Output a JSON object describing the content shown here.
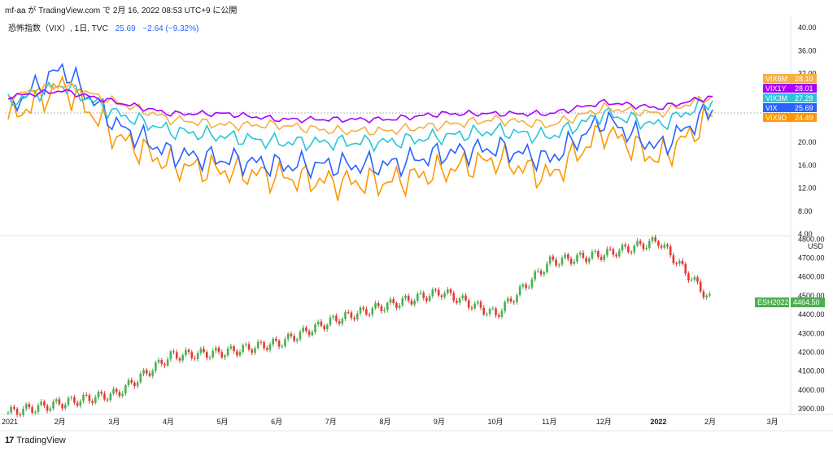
{
  "header": {
    "caption": "mf-aa が TradingView.com で 2月 16, 2022 08:53 UTC+9 に公開"
  },
  "legend": {
    "symbol": "恐怖指数（VIX）, 1日, TVC",
    "value": "25.69",
    "change": "−2.64 (−9.32%)"
  },
  "colors": {
    "vix": "#2962ff",
    "vix9d": "#ff9800",
    "vix3m": "#26c6da",
    "vix6m": "#f5b041",
    "vix1y": "#aa00ff",
    "es_up": "#4caf50",
    "es_down": "#e53935"
  },
  "top_axis_labels": [
    "40.00",
    "36.00",
    "32.00",
    "28.00",
    "24.00",
    "20.00",
    "16.00",
    "12.00",
    "8.00",
    "4.00"
  ],
  "bottom_axis_labels": [
    "4800.00",
    "4700.00",
    "4600.00",
    "4500.00",
    "4400.00",
    "4300.00",
    "4200.00",
    "4100.00",
    "4000.00",
    "3900.00"
  ],
  "bottom_axis_unit": "USD",
  "x_labels": [
    "2021",
    "2月",
    "3月",
    "4月",
    "5月",
    "6月",
    "7月",
    "8月",
    "9月",
    "10月",
    "11月",
    "12月",
    "2022",
    "2月",
    "3月"
  ],
  "badges": [
    {
      "name": "VIX6M",
      "value": "28.10",
      "color": "#f5b041"
    },
    {
      "name": "VIX1Y",
      "value": "28.01",
      "color": "#aa00ff"
    },
    {
      "name": "VIX3M",
      "value": "27.28",
      "color": "#26c6da"
    },
    {
      "name": "VIX",
      "value": "25.69",
      "color": "#2962ff"
    },
    {
      "name": "VIX9D",
      "value": "24.49",
      "color": "#ff9800"
    }
  ],
  "es_badge": {
    "name": "ESH2022",
    "value": "4464.50",
    "color": "#4caf50"
  },
  "footer": {
    "logo": "17",
    "brand": "TradingView"
  },
  "chart_data": [
    {
      "type": "line",
      "title": "恐怖指数（VIX）, 1日, TVC",
      "ylim": [
        4,
        42
      ],
      "x": [
        "2021-01",
        "2021-02",
        "2021-03",
        "2021-04",
        "2021-05",
        "2021-06",
        "2021-07",
        "2021-08",
        "2021-09",
        "2021-10",
        "2021-11",
        "2021-12",
        "2022-01",
        "2022-02"
      ],
      "series": [
        {
          "name": "VIX9D",
          "values": [
            24,
            30,
            21,
            16,
            15,
            14,
            13,
            13,
            15,
            17,
            14,
            22,
            17,
            24.49
          ]
        },
        {
          "name": "VIX",
          "values": [
            26,
            33,
            23,
            18,
            17,
            16,
            16,
            16,
            18,
            19,
            17,
            24,
            19,
            25.69
          ]
        },
        {
          "name": "VIX3M",
          "values": [
            27,
            30,
            25,
            22,
            21,
            20,
            20,
            20,
            21,
            22,
            21,
            25,
            23,
            27.28
          ]
        },
        {
          "name": "VIX6M",
          "values": [
            28,
            30,
            27,
            24,
            23,
            23,
            22,
            22,
            23,
            24,
            23,
            26,
            25,
            28.1
          ]
        },
        {
          "name": "VIX1Y",
          "values": [
            28,
            29,
            27,
            25,
            25,
            24,
            24,
            24,
            25,
            25,
            25,
            27,
            26,
            28.01
          ]
        }
      ]
    },
    {
      "type": "bar",
      "title": "ESH2022",
      "ylim": [
        3870,
        4810
      ],
      "categories": [
        "2021-01",
        "2021-02",
        "2021-03",
        "2021-04",
        "2021-05",
        "2021-06",
        "2021-07",
        "2021-08",
        "2021-09",
        "2021-10",
        "2021-11",
        "2021-12",
        "2022-01",
        "2022-02"
      ],
      "values": [
        3880,
        3930,
        3980,
        4180,
        4200,
        4250,
        4370,
        4450,
        4520,
        4400,
        4680,
        4720,
        4790,
        4464.5
      ]
    }
  ]
}
